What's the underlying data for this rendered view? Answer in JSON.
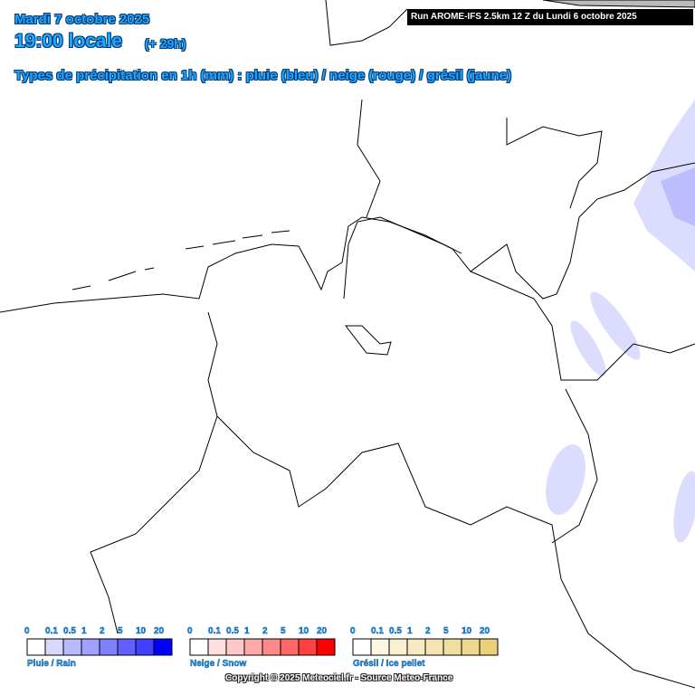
{
  "header": {
    "date": "Mardi 7 octobre 2025",
    "time": "19:00 locale",
    "lead": "(+ 29h)",
    "subtitle": "Types de précipitation en 1h (mm) : pluie (bleu) / neige (rouge) / grésil (jaune)",
    "run": "Run AROME-IFS 2.5km 12 Z du Lundi 6 octobre 2025"
  },
  "legends": [
    {
      "name": "Pluie / Rain",
      "ticks": [
        0,
        0.1,
        0.5,
        1,
        2,
        5,
        10,
        20
      ],
      "colors": [
        "#ffffff",
        "#d8d8ff",
        "#b8b8ff",
        "#a0a0ff",
        "#8080ff",
        "#6060ff",
        "#4040ff",
        "#0000ff"
      ]
    },
    {
      "name": "Neige / Snow",
      "ticks": [
        0,
        0.1,
        0.5,
        1,
        2,
        5,
        10,
        20
      ],
      "colors": [
        "#ffffff",
        "#ffe0e0",
        "#ffc8c8",
        "#ffa8a8",
        "#ff8888",
        "#ff6868",
        "#ff4040",
        "#ff0000"
      ]
    },
    {
      "name": "Grésil / Ice pellet",
      "ticks": [
        0,
        0.1,
        0.5,
        1,
        2,
        5,
        10,
        20
      ],
      "colors": [
        "#ffffff",
        "#fcf6e2",
        "#f9f0d2",
        "#f6eac0",
        "#f3e4b0",
        "#f0dea0",
        "#eed890",
        "#ead07a"
      ]
    }
  ],
  "copyright": "Copyright © 2025 Meteociel.fr - Source Meteo-France"
}
